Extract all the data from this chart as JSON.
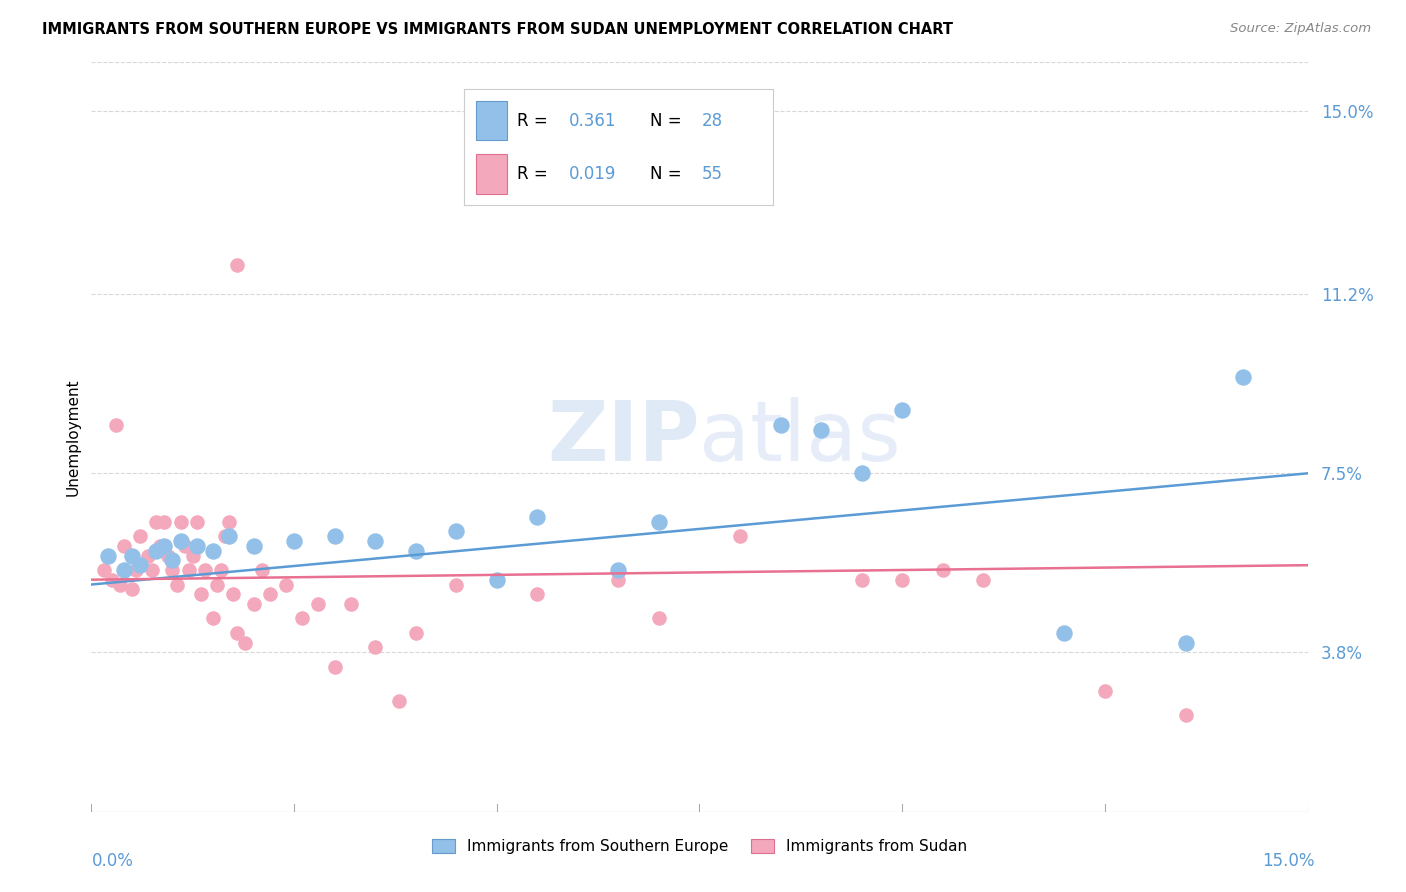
{
  "title": "IMMIGRANTS FROM SOUTHERN EUROPE VS IMMIGRANTS FROM SUDAN UNEMPLOYMENT CORRELATION CHART",
  "source": "Source: ZipAtlas.com",
  "ylabel": "Unemployment",
  "ytick_values": [
    3.8,
    7.5,
    11.2,
    15.0
  ],
  "xmin": 0.0,
  "xmax": 15.0,
  "ymin": 0.5,
  "ymax": 16.0,
  "legend_label_blue": "Immigrants from Southern Europe",
  "legend_label_pink": "Immigrants from Sudan",
  "blue_color": "#92C0E8",
  "pink_color": "#F4A8BC",
  "trendline_blue_color": "#5B9BD5",
  "trendline_pink_color": "#E87090",
  "grid_color": "#D8D8D8",
  "blue_r": "0.361",
  "blue_n": "28",
  "pink_r": "0.019",
  "pink_n": "55",
  "blue_x": [
    0.2,
    0.4,
    0.5,
    0.6,
    0.8,
    0.9,
    1.0,
    1.1,
    1.3,
    1.5,
    1.7,
    2.0,
    2.5,
    3.0,
    3.5,
    4.0,
    4.5,
    5.0,
    5.5,
    6.5,
    7.0,
    8.5,
    9.0,
    9.5,
    10.0,
    12.0,
    13.5,
    14.2
  ],
  "blue_y": [
    5.8,
    5.5,
    5.8,
    5.6,
    5.9,
    6.0,
    5.7,
    6.1,
    6.0,
    5.9,
    6.2,
    6.0,
    6.1,
    6.2,
    6.1,
    5.9,
    6.3,
    5.3,
    6.6,
    5.5,
    6.5,
    8.5,
    8.4,
    7.5,
    8.8,
    4.2,
    4.0,
    9.5
  ],
  "pink_x": [
    0.15,
    0.25,
    0.35,
    0.4,
    0.5,
    0.55,
    0.6,
    0.7,
    0.75,
    0.8,
    0.85,
    0.9,
    0.95,
    1.0,
    1.05,
    1.1,
    1.15,
    1.2,
    1.25,
    1.3,
    1.35,
    1.4,
    1.5,
    1.55,
    1.6,
    1.65,
    1.7,
    1.75,
    1.8,
    1.9,
    2.0,
    2.1,
    2.2,
    2.4,
    2.6,
    2.8,
    3.0,
    3.2,
    3.5,
    4.0,
    4.5,
    5.0,
    5.5,
    6.5,
    7.0,
    8.0,
    9.5,
    10.0,
    10.5,
    11.0,
    12.5,
    13.5,
    0.3,
    1.8,
    3.8
  ],
  "pink_y": [
    5.5,
    5.3,
    5.2,
    6.0,
    5.1,
    5.5,
    6.2,
    5.8,
    5.5,
    6.5,
    6.0,
    6.5,
    5.8,
    5.5,
    5.2,
    6.5,
    6.0,
    5.5,
    5.8,
    6.5,
    5.0,
    5.5,
    4.5,
    5.2,
    5.5,
    6.2,
    6.5,
    5.0,
    4.2,
    4.0,
    4.8,
    5.5,
    5.0,
    5.2,
    4.5,
    4.8,
    3.5,
    4.8,
    3.9,
    4.2,
    5.2,
    5.3,
    5.0,
    5.3,
    4.5,
    6.2,
    5.3,
    5.3,
    5.5,
    5.3,
    3.0,
    2.5,
    8.5,
    11.8,
    2.8
  ]
}
